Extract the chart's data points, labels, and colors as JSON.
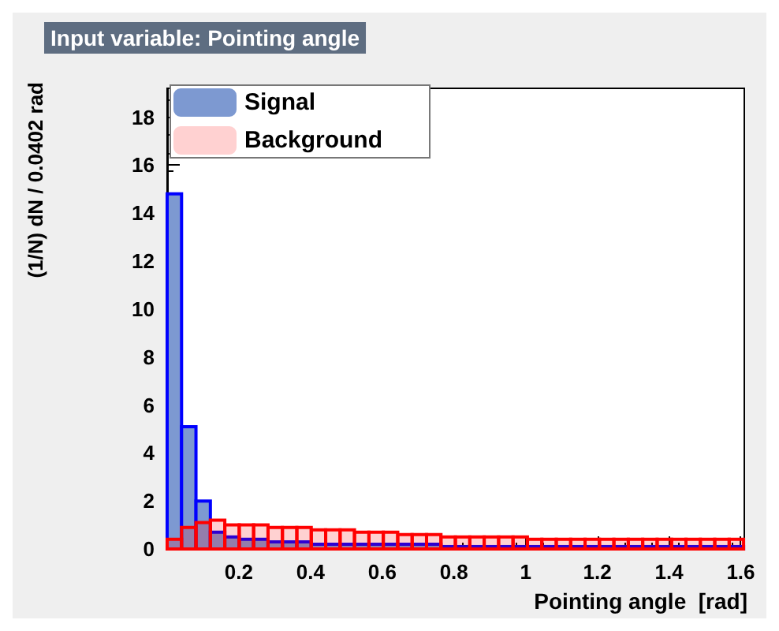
{
  "chart_data": {
    "type": "histogram",
    "title": "Input variable: Pointing angle",
    "xlabel": "Pointing angle  [rad]",
    "ylabel": "(1/N) dN / 0.0402 rad",
    "bins": [
      0,
      0.0402,
      0.0804,
      0.1206,
      0.1608,
      0.201,
      0.2412,
      0.2814,
      0.3216,
      0.3618,
      0.402,
      0.4422,
      0.4824,
      0.5226,
      0.5628,
      0.603,
      0.6432,
      0.6834,
      0.7236,
      0.7638,
      0.804,
      0.8442,
      0.8844,
      0.9246,
      0.9648,
      1.005,
      1.0452,
      1.0854,
      1.1256,
      1.1658,
      1.206,
      1.2462,
      1.2864,
      1.3266,
      1.3668,
      1.407,
      1.4472,
      1.4874,
      1.5276,
      1.5678,
      1.608
    ],
    "series": [
      {
        "name": "Signal",
        "color": "#7d99d1",
        "values": [
          14.8,
          5.1,
          2.0,
          0.7,
          0.5,
          0.4,
          0.4,
          0.3,
          0.3,
          0.3,
          0.2,
          0.2,
          0.2,
          0.2,
          0.2,
          0.2,
          0.2,
          0.2,
          0.2,
          0.1,
          0.1,
          0.1,
          0.1,
          0.1,
          0.1,
          0.1,
          0.1,
          0.1,
          0.1,
          0.1,
          0.1,
          0.1,
          0.1,
          0.1,
          0.1,
          0.1,
          0.1,
          0.1,
          0.1,
          0.1
        ]
      },
      {
        "name": "Background",
        "color": "#ff0000",
        "values": [
          0.4,
          0.9,
          1.1,
          1.2,
          1.0,
          1.0,
          1.0,
          0.9,
          0.9,
          0.9,
          0.8,
          0.8,
          0.8,
          0.7,
          0.7,
          0.7,
          0.6,
          0.6,
          0.6,
          0.5,
          0.5,
          0.5,
          0.5,
          0.5,
          0.5,
          0.4,
          0.4,
          0.4,
          0.4,
          0.4,
          0.4,
          0.4,
          0.4,
          0.4,
          0.4,
          0.4,
          0.4,
          0.4,
          0.4,
          0.4
        ]
      }
    ],
    "xlim": [
      0,
      1.61
    ],
    "xticks": [
      0.2,
      0.4,
      0.6,
      0.8,
      1,
      1.2,
      1.4,
      1.6
    ],
    "ylim": [
      0,
      19.2
    ],
    "yticks": [
      0,
      2,
      4,
      6,
      8,
      10,
      12,
      14,
      16,
      18
    ],
    "legend": "top left",
    "grid": false
  }
}
